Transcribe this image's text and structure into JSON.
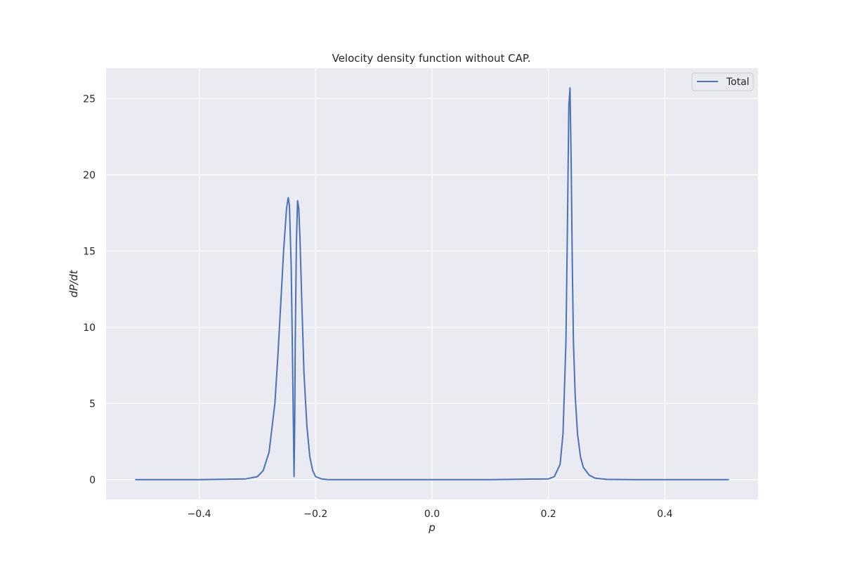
{
  "chart_data": {
    "type": "line",
    "title": "Velocity density function without CAP.",
    "xlabel": "p",
    "ylabel": "dP/dt",
    "xlim": [
      -0.56,
      0.56
    ],
    "ylim": [
      -1.3,
      27.0
    ],
    "x_ticks": [
      -0.4,
      -0.2,
      0.0,
      0.2,
      0.4
    ],
    "x_tick_labels": [
      "−0.4",
      "−0.2",
      "0.0",
      "0.2",
      "0.4"
    ],
    "y_ticks": [
      0,
      5,
      10,
      15,
      20,
      25
    ],
    "y_tick_labels": [
      "0",
      "5",
      "10",
      "15",
      "20",
      "25"
    ],
    "grid": true,
    "legend_position": "top-right",
    "series": [
      {
        "name": "Total",
        "color": "#4c72b0",
        "x": [
          -0.51,
          -0.4,
          -0.32,
          -0.3,
          -0.29,
          -0.28,
          -0.27,
          -0.265,
          -0.26,
          -0.255,
          -0.25,
          -0.247,
          -0.245,
          -0.242,
          -0.24,
          -0.238,
          -0.237,
          -0.236,
          -0.235,
          -0.233,
          -0.231,
          -0.229,
          -0.227,
          -0.224,
          -0.22,
          -0.215,
          -0.21,
          -0.205,
          -0.2,
          -0.19,
          -0.18,
          -0.17,
          -0.1,
          0.0,
          0.1,
          0.2,
          0.21,
          0.22,
          0.225,
          0.23,
          0.233,
          0.235,
          0.237,
          0.239,
          0.241,
          0.243,
          0.246,
          0.25,
          0.255,
          0.26,
          0.27,
          0.28,
          0.3,
          0.35,
          0.4,
          0.51
        ],
        "y": [
          0.0,
          0.0,
          0.05,
          0.2,
          0.6,
          1.8,
          5.0,
          8.0,
          11.5,
          15.0,
          17.8,
          18.5,
          18.0,
          14.0,
          9.0,
          3.0,
          0.2,
          3.5,
          9.0,
          15.5,
          18.3,
          17.8,
          16.0,
          12.0,
          7.0,
          3.5,
          1.5,
          0.6,
          0.2,
          0.05,
          0.01,
          0.0,
          0.0,
          0.0,
          0.0,
          0.05,
          0.2,
          1.0,
          3.0,
          9.0,
          18.0,
          24.5,
          25.7,
          21.0,
          14.0,
          9.0,
          5.5,
          3.0,
          1.5,
          0.8,
          0.3,
          0.1,
          0.02,
          0.0,
          0.0,
          0.0
        ]
      }
    ]
  }
}
